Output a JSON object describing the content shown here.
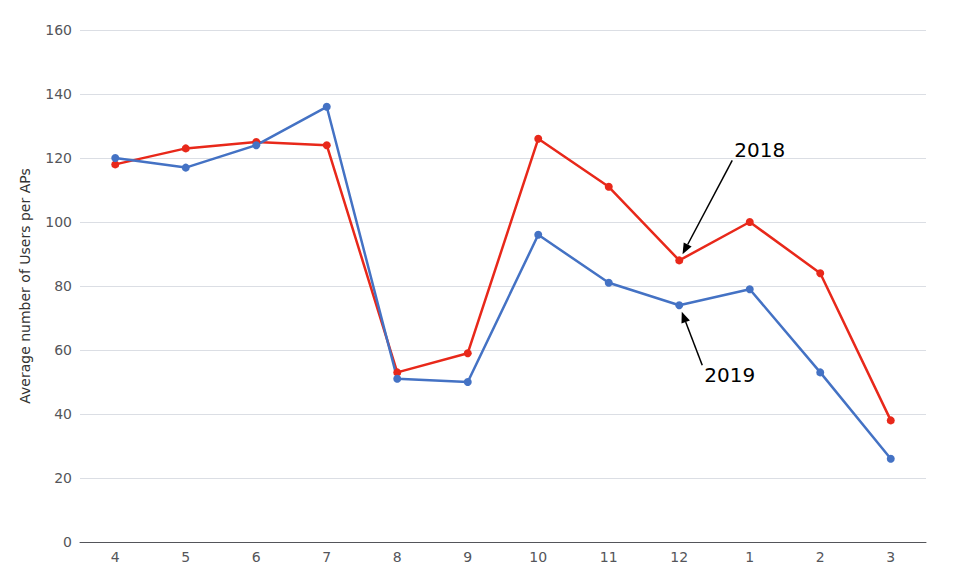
{
  "chart_data": {
    "type": "line",
    "categories": [
      "4",
      "5",
      "6",
      "7",
      "8",
      "9",
      "10",
      "11",
      "12",
      "1",
      "2",
      "3"
    ],
    "series": [
      {
        "name": "2018",
        "color": "#e8281a",
        "values": [
          118,
          123,
          125,
          124,
          53,
          59,
          126,
          111,
          88,
          100,
          84,
          38
        ]
      },
      {
        "name": "2019",
        "color": "#4472c4",
        "values": [
          120,
          117,
          124,
          136,
          51,
          50,
          96,
          81,
          74,
          79,
          53,
          26
        ]
      }
    ],
    "ylabel": "Average number of Users per APs",
    "ylim": [
      0,
      160
    ],
    "yticks": [
      0,
      20,
      40,
      60,
      80,
      100,
      120,
      140,
      160
    ],
    "grid": true,
    "marker": "circle",
    "annotations": [
      {
        "text": "2018",
        "series": "2018",
        "category": "12"
      },
      {
        "text": "2019",
        "series": "2019",
        "category": "12"
      }
    ]
  }
}
